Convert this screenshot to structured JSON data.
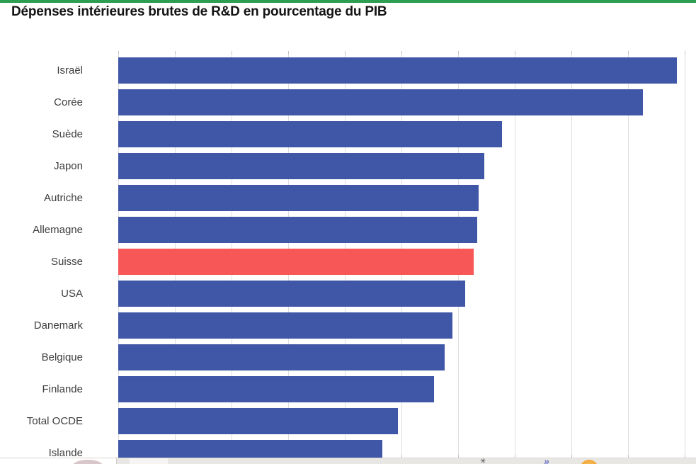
{
  "header": {
    "title": "Dépenses intérieures brutes de R&D en pourcentage du PIB"
  },
  "chart_data": {
    "type": "bar",
    "orientation": "horizontal",
    "title": "Dépenses intérieures brutes de R&D en pourcentage du PIB",
    "categories": [
      "Israël",
      "Corée",
      "Suède",
      "Japon",
      "Autriche",
      "Allemagne",
      "Suisse",
      "USA",
      "Danemark",
      "Belgique",
      "Finlande",
      "Total OCDE",
      "Islande"
    ],
    "values": [
      4.93,
      4.63,
      3.39,
      3.23,
      3.18,
      3.17,
      3.14,
      3.06,
      2.95,
      2.88,
      2.79,
      2.47,
      2.33
    ],
    "highlight_category": "Suisse",
    "xlim": [
      0,
      5
    ],
    "gridline_step": 0.5,
    "grid": true,
    "legend": "none",
    "axis_tick_labels_visible": false,
    "colors": {
      "bar": "#4056a6",
      "highlight": "#f85757",
      "gridline": "#dedede",
      "tick": "#c2c2c2",
      "label_text": "#3d3d3d",
      "title_text": "#141414",
      "top_accent": "#2d9e50"
    }
  },
  "taskbar": {
    "icons": [
      {
        "name": "mountain-logo-icon",
        "glyph": ""
      },
      {
        "name": "sparkle-icon",
        "glyph": "✳"
      },
      {
        "name": "double-chevron-icon",
        "glyph": "»"
      },
      {
        "name": "orange-circle-icon",
        "glyph": ""
      }
    ]
  }
}
